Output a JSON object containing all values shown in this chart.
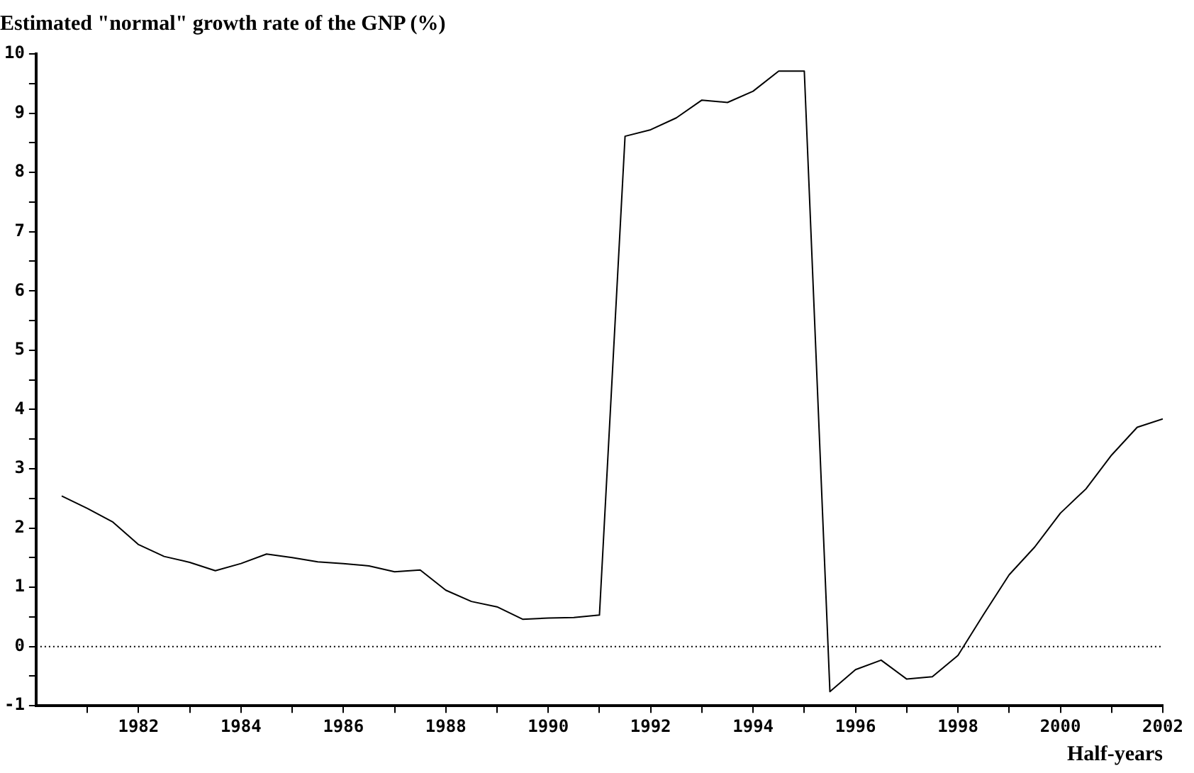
{
  "chart_data": {
    "type": "line",
    "title": "Estimated \"normal\" growth rate of the GNP (%)",
    "xlabel": "Half-years",
    "x": [
      1980.5,
      1981,
      1981.5,
      1982,
      1982.5,
      1983,
      1983.5,
      1984,
      1984.5,
      1985,
      1985.5,
      1986,
      1986.5,
      1987,
      1987.5,
      1988,
      1988.5,
      1989,
      1989.5,
      1990,
      1990.5,
      1991,
      1991.5,
      1992,
      1992.5,
      1993,
      1993.5,
      1994,
      1994.5,
      1995,
      1995.5,
      1996,
      1996.5,
      1997,
      1997.5,
      1998,
      1998.5,
      1999,
      1999.5,
      2000,
      2000.5,
      2001,
      2001.5,
      2002
    ],
    "series": [
      {
        "color": "#000000",
        "values": [
          2.54,
          2.33,
          2.1,
          1.72,
          1.52,
          1.42,
          1.28,
          1.4,
          1.56,
          1.5,
          1.43,
          1.4,
          1.36,
          1.26,
          1.29,
          0.95,
          0.76,
          0.67,
          0.46,
          0.48,
          0.49,
          0.53,
          8.61,
          8.72,
          8.92,
          9.22,
          9.18,
          9.37,
          9.71,
          9.71,
          -0.76,
          -0.39,
          -0.23,
          -0.55,
          -0.51,
          -0.15,
          0.54,
          1.21,
          1.68,
          2.25,
          2.66,
          3.23,
          3.7,
          3.84
        ]
      }
    ],
    "xlim": [
      1980,
      2002
    ],
    "xticks": [
      {
        "value": 1981,
        "label": null
      },
      1982,
      {
        "value": 1983,
        "label": null
      },
      1984,
      {
        "value": 1985,
        "label": null
      },
      1986,
      {
        "value": 1987,
        "label": null
      },
      1988,
      {
        "value": 1989,
        "label": null
      },
      1990,
      {
        "value": 1991,
        "label": null
      },
      1992,
      {
        "value": 1993,
        "label": null
      },
      1994,
      {
        "value": 1995,
        "label": null
      },
      1996,
      {
        "value": 1997,
        "label": null
      },
      1998,
      {
        "value": 1999,
        "label": null
      },
      2000,
      {
        "value": 2001,
        "label": null
      },
      2002
    ],
    "ylim": [
      -1,
      10
    ],
    "yticks": [
      -1,
      {
        "value": -0.5,
        "label": null
      },
      0,
      {
        "value": 0.5,
        "label": null
      },
      1,
      {
        "value": 1.5,
        "label": null
      },
      2,
      {
        "value": 2.5,
        "label": null
      },
      3,
      {
        "value": 3.5,
        "label": null
      },
      4,
      {
        "value": 4.5,
        "label": null
      },
      5,
      {
        "value": 5.5,
        "label": null
      },
      6,
      {
        "value": 6.5,
        "label": null
      },
      7,
      {
        "value": 7.5,
        "label": null
      },
      8,
      {
        "value": 8.5,
        "label": null
      },
      9,
      {
        "value": 9.5,
        "label": null
      },
      10
    ],
    "ref_lines": [
      {
        "axis": "y",
        "value": 0,
        "color": "#000000",
        "line_style": "dotted"
      }
    ],
    "grid": false,
    "legend": false,
    "marker": "none",
    "line_style": "solid"
  }
}
